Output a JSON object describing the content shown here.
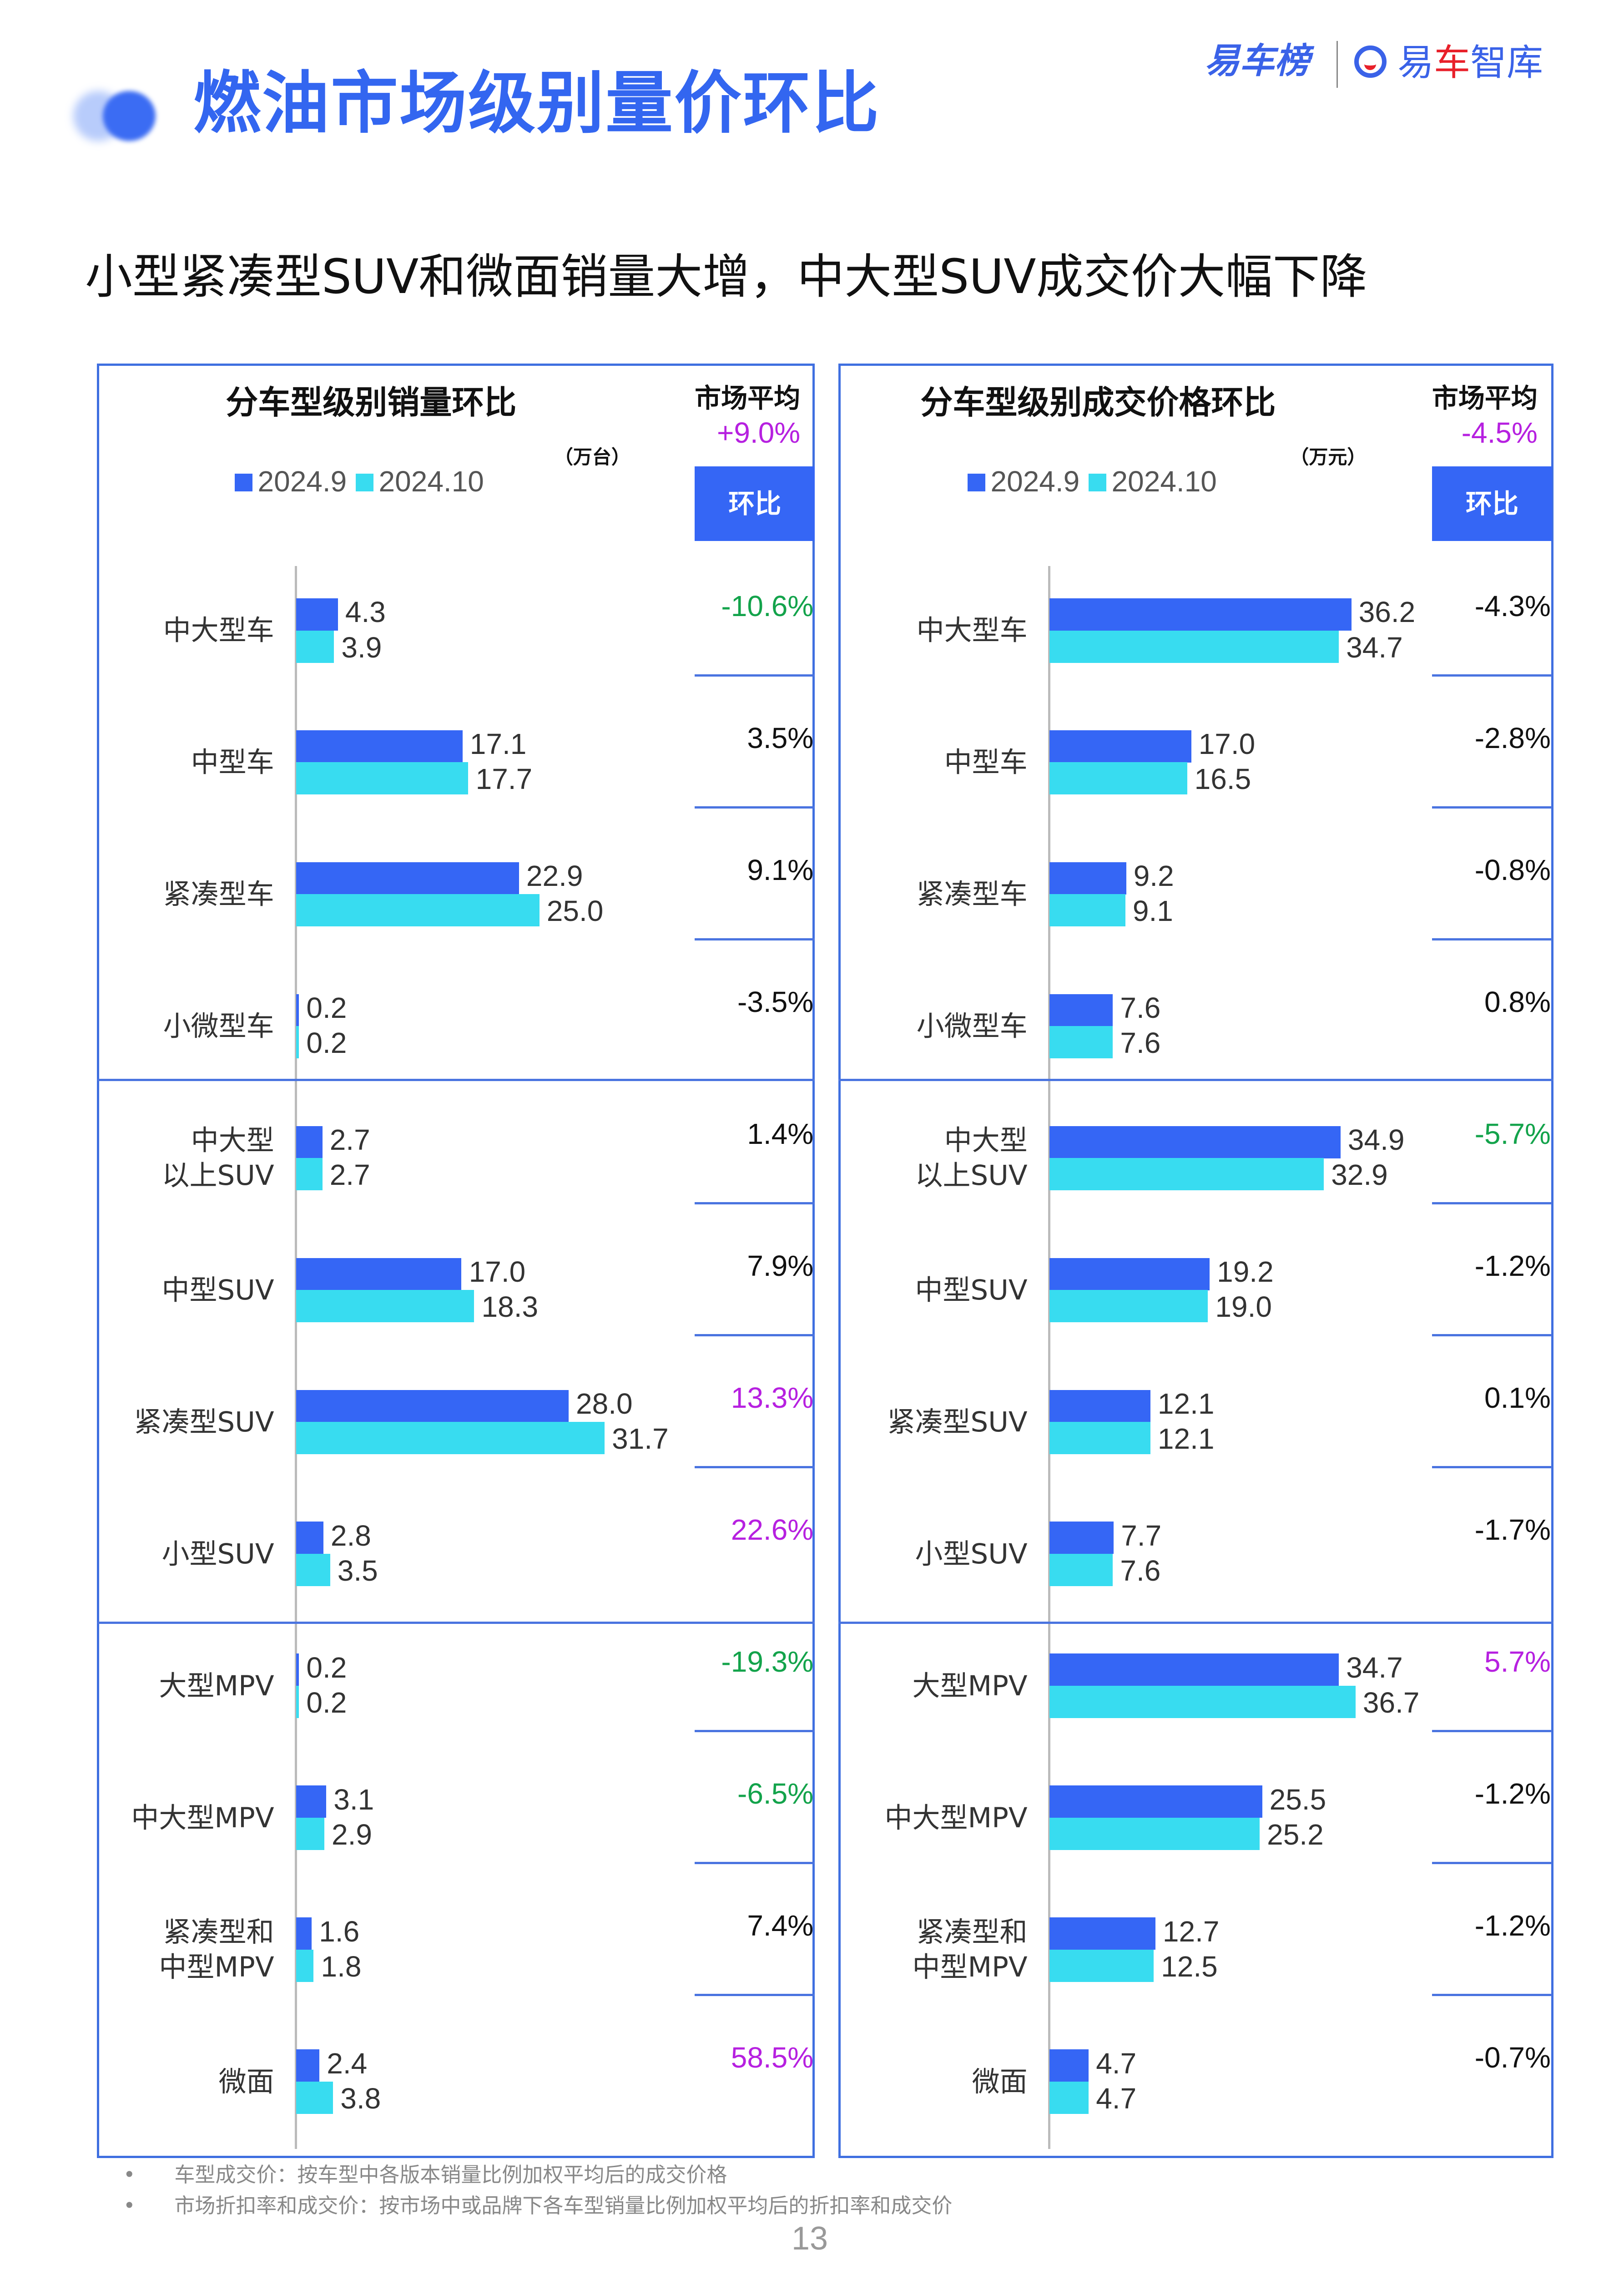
{
  "header": {
    "title": "燃油市场级别量价环比",
    "logo_left": "易车榜",
    "logo_right_a": "易",
    "logo_right_b": "车",
    "logo_right_c": "智库"
  },
  "subtitle": "小型紧凑型SUV和微面销量大增，中大型SUV成交价大幅下降",
  "colors": {
    "series_2024_9": "#3566f5",
    "series_2024_10": "#38dcf0",
    "positive_highlight": "#b620e0",
    "negative_highlight": "#13a34b",
    "normal": "#111111",
    "accent": "#3566f5"
  },
  "chart_data": [
    {
      "type": "bar",
      "orientation": "horizontal",
      "title": "分车型级别销量环比",
      "unit": "（万台）",
      "market_avg_label": "市场平均",
      "market_avg": "+9.0%",
      "change_header": "环比",
      "legend": [
        "2024.9",
        "2024.10"
      ],
      "categories": [
        "中大型车",
        "中型车",
        "紧凑型车",
        "小微型车",
        "中大型\n以上SUV",
        "中型SUV",
        "紧凑型SUV",
        "小型SUV",
        "大型MPV",
        "中大型MPV",
        "紧凑型和\n中型MPV",
        "微面"
      ],
      "series": [
        {
          "name": "2024.9",
          "values": [
            4.3,
            17.1,
            22.9,
            0.2,
            2.7,
            17.0,
            28.0,
            2.8,
            0.2,
            3.1,
            1.6,
            2.4
          ]
        },
        {
          "name": "2024.10",
          "values": [
            3.9,
            17.7,
            25.0,
            0.2,
            2.7,
            18.3,
            31.7,
            3.5,
            0.2,
            2.9,
            1.8,
            3.8
          ]
        }
      ],
      "change": [
        "-10.6%",
        "3.5%",
        "9.1%",
        "-3.5%",
        "1.4%",
        "7.9%",
        "13.3%",
        "22.6%",
        "-19.3%",
        "-6.5%",
        "7.4%",
        "58.5%"
      ],
      "change_color": [
        "green",
        "black",
        "black",
        "black",
        "black",
        "black",
        "magenta",
        "magenta",
        "green",
        "green",
        "black",
        "magenta"
      ],
      "xlim": [
        0,
        32
      ]
    },
    {
      "type": "bar",
      "orientation": "horizontal",
      "title": "分车型级别成交价格环比",
      "unit": "（万元）",
      "market_avg_label": "市场平均",
      "market_avg": "-4.5%",
      "change_header": "环比",
      "legend": [
        "2024.9",
        "2024.10"
      ],
      "categories": [
        "中大型车",
        "中型车",
        "紧凑型车",
        "小微型车",
        "中大型\n以上SUV",
        "中型SUV",
        "紧凑型SUV",
        "小型SUV",
        "大型MPV",
        "中大型MPV",
        "紧凑型和\n中型MPV",
        "微面"
      ],
      "series": [
        {
          "name": "2024.9",
          "values": [
            36.2,
            17.0,
            9.2,
            7.6,
            34.9,
            19.2,
            12.1,
            7.7,
            34.7,
            25.5,
            12.7,
            4.7
          ]
        },
        {
          "name": "2024.10",
          "values": [
            34.7,
            16.5,
            9.1,
            7.6,
            32.9,
            19.0,
            12.1,
            7.6,
            36.7,
            25.2,
            12.5,
            4.7
          ]
        }
      ],
      "change": [
        "-4.3%",
        "-2.8%",
        "-0.8%",
        "0.8%",
        "-5.7%",
        "-1.2%",
        "0.1%",
        "-1.7%",
        "5.7%",
        "-1.2%",
        "-1.2%",
        "-0.7%"
      ],
      "change_color": [
        "black",
        "black",
        "black",
        "black",
        "green",
        "black",
        "black",
        "black",
        "magenta",
        "black",
        "black",
        "black"
      ],
      "xlim": [
        0,
        38
      ]
    }
  ],
  "notes": [
    "车型成交价：按车型中各版本销量比例加权平均后的成交价格",
    "市场折扣率和成交价：按市场中或品牌下各车型销量比例加权平均后的折扣率和成交价"
  ],
  "page_number": "13"
}
